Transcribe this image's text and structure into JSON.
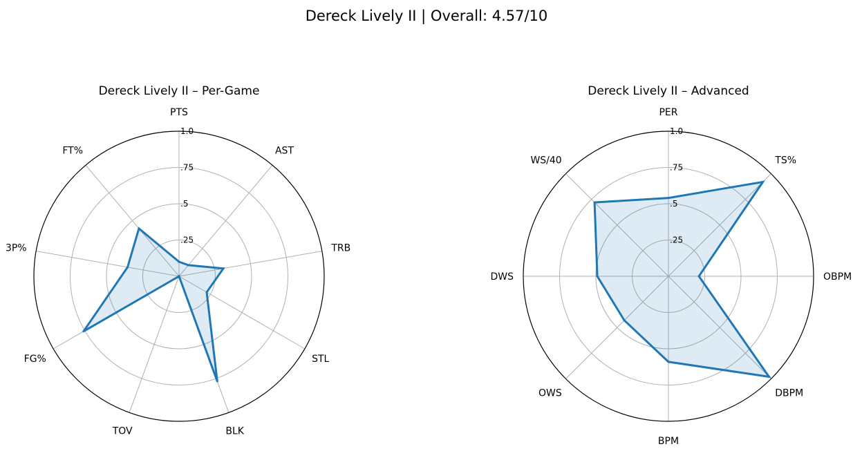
{
  "figure": {
    "title": "Dereck Lively II | Overall: 4.57/10"
  },
  "chart_data": [
    {
      "type": "radar",
      "title": "Dereck Lively II – Per-Game",
      "categories": [
        "PTS",
        "AST",
        "TRB",
        "STL",
        "BLK",
        "TOV",
        "FG%",
        "3P%",
        "FT%"
      ],
      "values": [
        0.1,
        0.1,
        0.31,
        0.22,
        0.77,
        0.0,
        0.76,
        0.36,
        0.43
      ],
      "radial_range": [
        0,
        1
      ],
      "radial_ticks": [
        0.25,
        0.5,
        0.75,
        1.0
      ],
      "radial_tick_labels": [
        ".25",
        ".5",
        ".75",
        "1.0"
      ],
      "grid": true,
      "color": "#1f77b4",
      "fill_color": "#1f77b4"
    },
    {
      "type": "radar",
      "title": "Dereck Lively II – Advanced",
      "categories": [
        "PER",
        "TS%",
        "OBPM",
        "DBPM",
        "BPM",
        "OWS",
        "DWS",
        "WS/40"
      ],
      "values": [
        0.54,
        0.92,
        0.21,
        0.98,
        0.59,
        0.43,
        0.49,
        0.72
      ],
      "radial_range": [
        0,
        1
      ],
      "radial_ticks": [
        0.25,
        0.5,
        0.75,
        1.0
      ],
      "radial_tick_labels": [
        ".25",
        ".5",
        ".75",
        "1.0"
      ],
      "grid": true,
      "color": "#1f77b4",
      "fill_color": "#1f77b4"
    }
  ]
}
